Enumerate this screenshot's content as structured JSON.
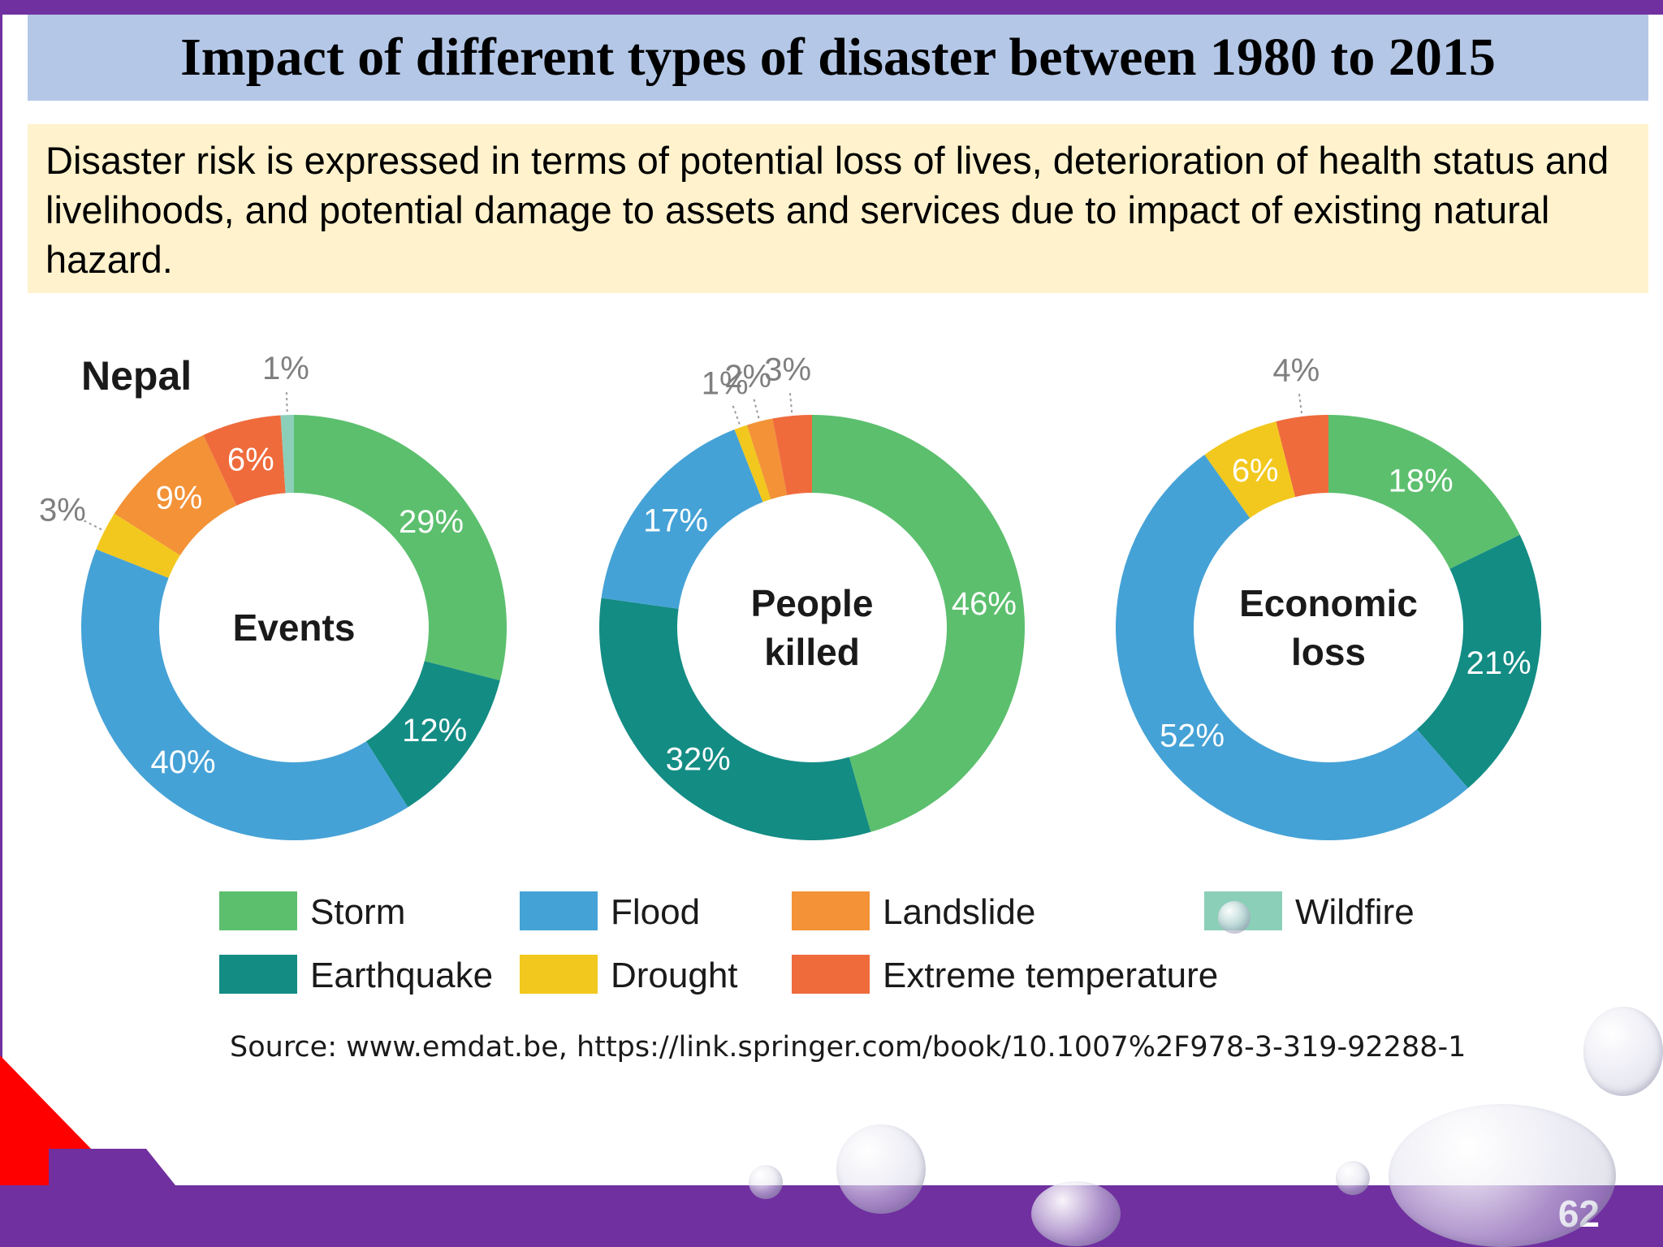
{
  "slide": {
    "title": "Impact of different types of disaster between 1980 to 2015",
    "description": "Disaster risk is expressed in terms of potential loss of lives, deterioration of health status and livelihoods, and potential damage to assets and services due to impact of existing natural hazard.",
    "source": "Source: www.emdat.be, https://link.springer.com/book/10.1007%2F978-3-319-92288-1",
    "page_number": "62"
  },
  "colors": {
    "title_bg": "#b4c7e7",
    "description_bg": "#fff2cc",
    "accent_purple": "#7030a0",
    "corner_red": "#ff0000"
  },
  "chart_data": {
    "type": "pie",
    "variant": "donut",
    "heading": "Nepal",
    "legend": [
      {
        "name": "Storm",
        "color": "#5cbf6e"
      },
      {
        "name": "Flood",
        "color": "#45a2d6"
      },
      {
        "name": "Landslide",
        "color": "#f39237"
      },
      {
        "name": "Wildfire",
        "color": "#8ccfb9"
      },
      {
        "name": "Earthquake",
        "color": "#138c84"
      },
      {
        "name": "Drought",
        "color": "#f2c81e"
      },
      {
        "name": "Extreme temperature",
        "color": "#ef6b3c"
      }
    ],
    "charts": [
      {
        "label_lines": [
          "Events"
        ],
        "slices": [
          {
            "category": "Storm",
            "value": 29,
            "label": "29%"
          },
          {
            "category": "Earthquake",
            "value": 12,
            "label": "12%"
          },
          {
            "category": "Flood",
            "value": 40,
            "label": "40%"
          },
          {
            "category": "Drought",
            "value": 3,
            "label": "3%"
          },
          {
            "category": "Landslide",
            "value": 9,
            "label": "9%"
          },
          {
            "category": "Extreme temperature",
            "value": 6,
            "label": "6%"
          },
          {
            "category": "Wildfire",
            "value": 1,
            "label": "1%"
          }
        ]
      },
      {
        "label_lines": [
          "People",
          "killed"
        ],
        "slices": [
          {
            "category": "Storm",
            "value": 46,
            "label": "46%"
          },
          {
            "category": "Earthquake",
            "value": 32,
            "label": "32%"
          },
          {
            "category": "Flood",
            "value": 17,
            "label": "17%"
          },
          {
            "category": "Drought",
            "value": 1,
            "label": "1%"
          },
          {
            "category": "Landslide",
            "value": 2,
            "label": "2%"
          },
          {
            "category": "Extreme temperature",
            "value": 3,
            "label": "3%"
          }
        ]
      },
      {
        "label_lines": [
          "Economic",
          "loss"
        ],
        "slices": [
          {
            "category": "Storm",
            "value": 18,
            "label": "18%"
          },
          {
            "category": "Earthquake",
            "value": 21,
            "label": "21%"
          },
          {
            "category": "Flood",
            "value": 52,
            "label": "52%"
          },
          {
            "category": "Drought",
            "value": 6,
            "label": "6%"
          },
          {
            "category": "Extreme temperature",
            "value": 4,
            "label": "4%"
          }
        ]
      }
    ]
  }
}
